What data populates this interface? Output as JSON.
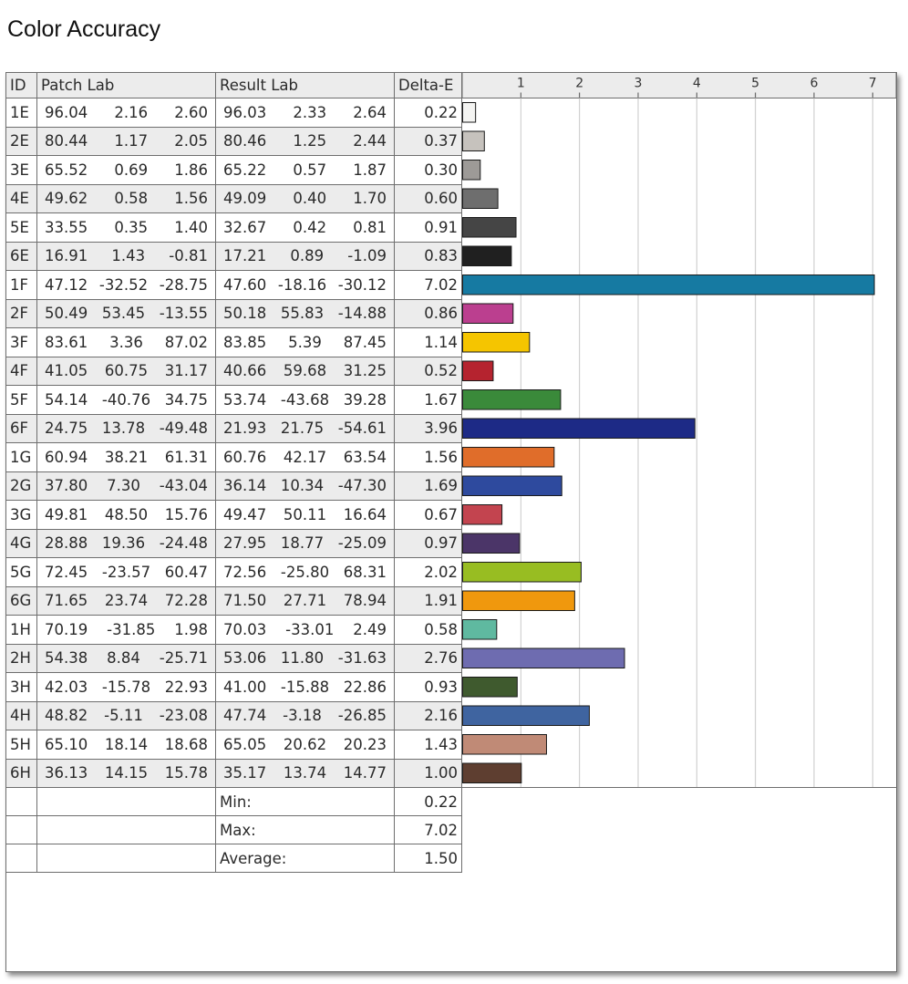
{
  "title": "Color Accuracy",
  "table": {
    "headers": {
      "id": "ID",
      "patch": "Patch Lab",
      "result": "Result Lab",
      "delta": "Delta-E"
    },
    "rows": [
      {
        "id": "1E",
        "patch": [
          "96.04",
          "2.16",
          "2.60"
        ],
        "result": [
          "96.03",
          "2.33",
          "2.64"
        ],
        "delta": "0.22"
      },
      {
        "id": "2E",
        "patch": [
          "80.44",
          "1.17",
          "2.05"
        ],
        "result": [
          "80.46",
          "1.25",
          "2.44"
        ],
        "delta": "0.37"
      },
      {
        "id": "3E",
        "patch": [
          "65.52",
          "0.69",
          "1.86"
        ],
        "result": [
          "65.22",
          "0.57",
          "1.87"
        ],
        "delta": "0.30"
      },
      {
        "id": "4E",
        "patch": [
          "49.62",
          "0.58",
          "1.56"
        ],
        "result": [
          "49.09",
          "0.40",
          "1.70"
        ],
        "delta": "0.60"
      },
      {
        "id": "5E",
        "patch": [
          "33.55",
          "0.35",
          "1.40"
        ],
        "result": [
          "32.67",
          "0.42",
          "0.81"
        ],
        "delta": "0.91"
      },
      {
        "id": "6E",
        "patch": [
          "16.91",
          "1.43",
          "-0.81"
        ],
        "result": [
          "17.21",
          "0.89",
          "-1.09"
        ],
        "delta": "0.83"
      },
      {
        "id": "1F",
        "patch": [
          "47.12",
          "-32.52",
          "-28.75"
        ],
        "result": [
          "47.60",
          "-18.16",
          "-30.12"
        ],
        "delta": "7.02"
      },
      {
        "id": "2F",
        "patch": [
          "50.49",
          "53.45",
          "-13.55"
        ],
        "result": [
          "50.18",
          "55.83",
          "-14.88"
        ],
        "delta": "0.86"
      },
      {
        "id": "3F",
        "patch": [
          "83.61",
          "3.36",
          "87.02"
        ],
        "result": [
          "83.85",
          "5.39",
          "87.45"
        ],
        "delta": "1.14"
      },
      {
        "id": "4F",
        "patch": [
          "41.05",
          "60.75",
          "31.17"
        ],
        "result": [
          "40.66",
          "59.68",
          "31.25"
        ],
        "delta": "0.52"
      },
      {
        "id": "5F",
        "patch": [
          "54.14",
          "-40.76",
          "34.75"
        ],
        "result": [
          "53.74",
          "-43.68",
          "39.28"
        ],
        "delta": "1.67"
      },
      {
        "id": "6F",
        "patch": [
          "24.75",
          "13.78",
          "-49.48"
        ],
        "result": [
          "21.93",
          "21.75",
          "-54.61"
        ],
        "delta": "3.96"
      },
      {
        "id": "1G",
        "patch": [
          "60.94",
          "38.21",
          "61.31"
        ],
        "result": [
          "60.76",
          "42.17",
          "63.54"
        ],
        "delta": "1.56"
      },
      {
        "id": "2G",
        "patch": [
          "37.80",
          "7.30",
          "-43.04"
        ],
        "result": [
          "36.14",
          "10.34",
          "-47.30"
        ],
        "delta": "1.69"
      },
      {
        "id": "3G",
        "patch": [
          "49.81",
          "48.50",
          "15.76"
        ],
        "result": [
          "49.47",
          "50.11",
          "16.64"
        ],
        "delta": "0.67"
      },
      {
        "id": "4G",
        "patch": [
          "28.88",
          "19.36",
          "-24.48"
        ],
        "result": [
          "27.95",
          "18.77",
          "-25.09"
        ],
        "delta": "0.97"
      },
      {
        "id": "5G",
        "patch": [
          "72.45",
          "-23.57",
          "60.47"
        ],
        "result": [
          "72.56",
          "-25.80",
          "68.31"
        ],
        "delta": "2.02"
      },
      {
        "id": "6G",
        "patch": [
          "71.65",
          "23.74",
          "72.28"
        ],
        "result": [
          "71.50",
          "27.71",
          "78.94"
        ],
        "delta": "1.91"
      },
      {
        "id": "1H",
        "patch": [
          "70.19",
          "-31.85",
          "1.98"
        ],
        "result": [
          "70.03",
          "-33.01",
          "2.49"
        ],
        "delta": "0.58"
      },
      {
        "id": "2H",
        "patch": [
          "54.38",
          "8.84",
          "-25.71"
        ],
        "result": [
          "53.06",
          "11.80",
          "-31.63"
        ],
        "delta": "2.76"
      },
      {
        "id": "3H",
        "patch": [
          "42.03",
          "-15.78",
          "22.93"
        ],
        "result": [
          "41.00",
          "-15.88",
          "22.86"
        ],
        "delta": "0.93"
      },
      {
        "id": "4H",
        "patch": [
          "48.82",
          "-5.11",
          "-23.08"
        ],
        "result": [
          "47.74",
          "-3.18",
          "-26.85"
        ],
        "delta": "2.16"
      },
      {
        "id": "5H",
        "patch": [
          "65.10",
          "18.14",
          "18.68"
        ],
        "result": [
          "65.05",
          "20.62",
          "20.23"
        ],
        "delta": "1.43"
      },
      {
        "id": "6H",
        "patch": [
          "36.13",
          "14.15",
          "15.78"
        ],
        "result": [
          "35.17",
          "13.74",
          "14.77"
        ],
        "delta": "1.00"
      }
    ],
    "summary": [
      {
        "label": "Min:",
        "value": "0.22"
      },
      {
        "label": "Max:",
        "value": "7.02"
      },
      {
        "label": "Average:",
        "value": "1.50"
      }
    ]
  },
  "chart_data": {
    "type": "bar",
    "orientation": "horizontal",
    "title": "Color Accuracy",
    "xlim": [
      0,
      7.4
    ],
    "ticks": [
      1,
      2,
      3,
      4,
      5,
      6,
      7
    ],
    "grid": true,
    "categories": [
      "1E",
      "2E",
      "3E",
      "4E",
      "5E",
      "6E",
      "1F",
      "2F",
      "3F",
      "4F",
      "5F",
      "6F",
      "1G",
      "2G",
      "3G",
      "4G",
      "5G",
      "6G",
      "1H",
      "2H",
      "3H",
      "4H",
      "5H",
      "6H"
    ],
    "values": [
      0.22,
      0.37,
      0.3,
      0.6,
      0.91,
      0.83,
      7.02,
      0.86,
      1.14,
      0.52,
      1.67,
      3.96,
      1.56,
      1.69,
      0.67,
      0.97,
      2.02,
      1.91,
      0.58,
      2.76,
      0.93,
      2.16,
      1.43,
      1.0
    ],
    "colors": [
      "#f4f4f2",
      "#c6c2bd",
      "#9d9a97",
      "#6e6e6e",
      "#454545",
      "#202020",
      "#167aa2",
      "#bb3f8f",
      "#f5c500",
      "#b5232f",
      "#3a8a3a",
      "#1d2a86",
      "#e06d2a",
      "#2e4a9e",
      "#c3444f",
      "#4b3568",
      "#98bd22",
      "#f0980d",
      "#5fb9a0",
      "#6e6cb0",
      "#3f5a2e",
      "#3f64a0",
      "#c08a76",
      "#5e3e30"
    ]
  }
}
